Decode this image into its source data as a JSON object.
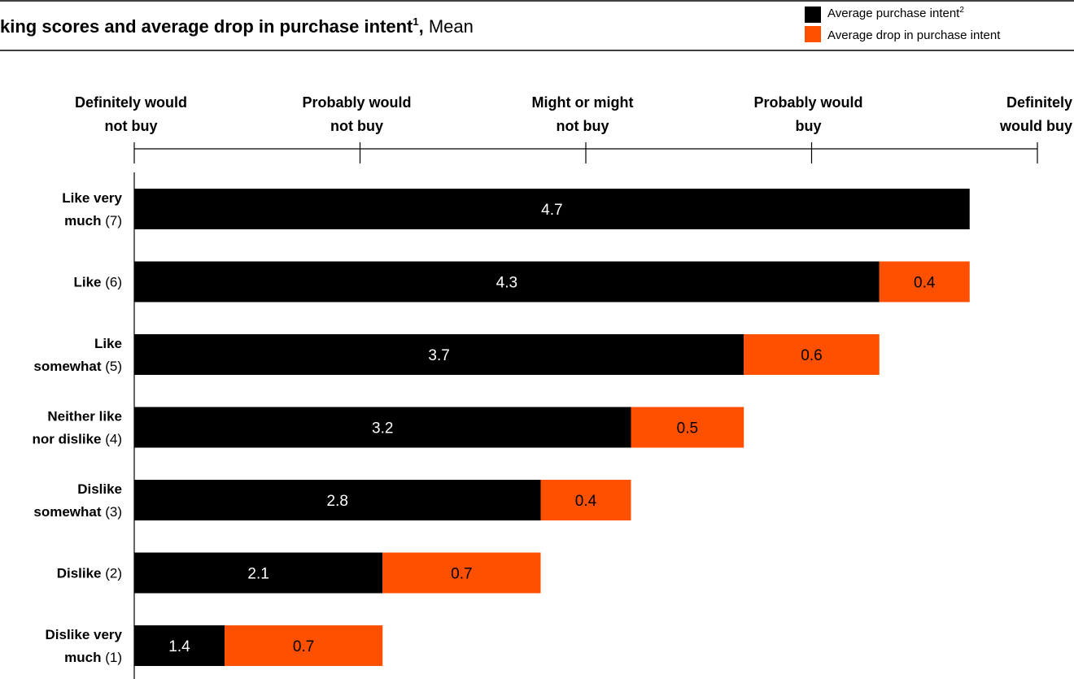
{
  "chart_data": {
    "type": "bar",
    "stacked": true,
    "orientation": "horizontal",
    "title": {
      "bold": "king scores and average drop in purchase intent",
      "superscript": "1",
      "suffix": ",",
      "normal": "Mean"
    },
    "legend": {
      "position": "top-right",
      "items": [
        {
          "label": "Average purchase intent",
          "superscript": "2",
          "color": "#000000"
        },
        {
          "label": "Average drop in purchase intent",
          "superscript": "",
          "color": "#FF5000"
        }
      ]
    },
    "scale": {
      "range": [
        1,
        5
      ],
      "ticks": [
        {
          "value": 1,
          "lines": [
            "Definitely would",
            "not buy"
          ],
          "align": "center"
        },
        {
          "value": 2,
          "lines": [
            "Probably would",
            "not buy"
          ],
          "align": "center"
        },
        {
          "value": 3,
          "lines": [
            "Might or might",
            "not buy"
          ],
          "align": "center"
        },
        {
          "value": 4,
          "lines": [
            "Probably would",
            "buy"
          ],
          "align": "center"
        },
        {
          "value": 5,
          "lines": [
            "Definitely",
            "would buy"
          ],
          "align": "end"
        }
      ]
    },
    "categories": [
      {
        "lines": [
          {
            "bold": "Like very"
          },
          {
            "bold": "much",
            "normal": " (7)"
          }
        ]
      },
      {
        "lines": [
          {
            "bold": "Like",
            "normal": " (6)"
          }
        ]
      },
      {
        "lines": [
          {
            "bold": "Like"
          },
          {
            "bold": "somewhat",
            "normal": " (5)"
          }
        ]
      },
      {
        "lines": [
          {
            "bold": "Neither like"
          },
          {
            "bold": "nor dislike",
            "normal": " (4)"
          }
        ]
      },
      {
        "lines": [
          {
            "bold": "Dislike"
          },
          {
            "bold": "somewhat",
            "normal": " (3)"
          }
        ]
      },
      {
        "lines": [
          {
            "bold": "Dislike",
            "normal": " (2)"
          }
        ]
      },
      {
        "lines": [
          {
            "bold": "Dislike very"
          },
          {
            "bold": "much",
            "normal": " (1)"
          }
        ]
      }
    ],
    "series": [
      {
        "name": "Average purchase intent",
        "color": "#000000",
        "values": [
          4.7,
          4.3,
          3.7,
          3.2,
          2.8,
          2.1,
          1.4
        ]
      },
      {
        "name": "Average drop in purchase intent",
        "color": "#FF5000",
        "values": [
          null,
          0.4,
          0.6,
          0.5,
          0.4,
          0.7,
          0.7
        ]
      }
    ]
  }
}
